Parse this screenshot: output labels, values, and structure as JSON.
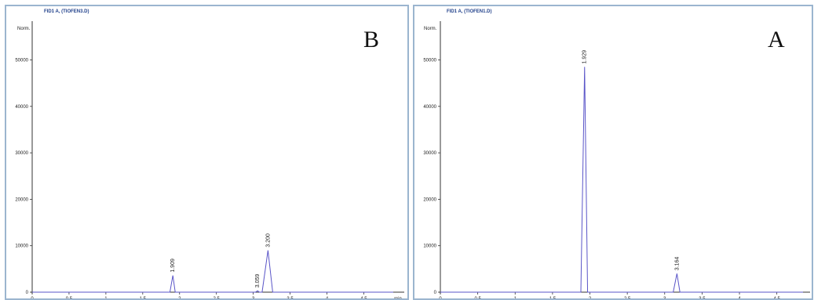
{
  "chart_data": [
    {
      "type": "line",
      "panel_label": "B",
      "signal_title": "FID1 A, (TIOFEN3.D)",
      "ylabel": "Norm.",
      "xunit": "min",
      "xlim": [
        0,
        4.9
      ],
      "ylim": [
        0,
        57000
      ],
      "xticks": [
        0,
        0.5,
        1,
        1.5,
        2,
        2.5,
        3,
        3.5,
        4,
        4.5
      ],
      "yticks": [
        0,
        10000,
        20000,
        30000,
        40000,
        50000
      ],
      "peaks": [
        {
          "label": "1.909",
          "x": 1.909,
          "y": 3600,
          "halfwidth": 0.04
        },
        {
          "label": "3.059",
          "x": 3.059,
          "y": 300,
          "halfwidth": 0.03
        },
        {
          "label": "3.200",
          "x": 3.2,
          "y": 9000,
          "halfwidth": 0.08
        }
      ],
      "color": "#5a55c8"
    },
    {
      "type": "line",
      "panel_label": "A",
      "signal_title": "FID1 A, (TIOFEN1.D)",
      "ylabel": "Norm.",
      "xunit": "",
      "xlim": [
        0,
        4.85
      ],
      "ylim": [
        0,
        57000
      ],
      "xticks": [
        0,
        0.5,
        1,
        1.5,
        2,
        2.5,
        3,
        3.5,
        4,
        4.5
      ],
      "yticks": [
        0,
        10000,
        20000,
        30000,
        40000,
        50000
      ],
      "peaks": [
        {
          "label": "1.929",
          "x": 1.929,
          "y": 48500,
          "halfwidth": 0.05
        },
        {
          "label": "3.164",
          "x": 3.164,
          "y": 4000,
          "halfwidth": 0.05
        }
      ],
      "color": "#5a55c8"
    }
  ]
}
